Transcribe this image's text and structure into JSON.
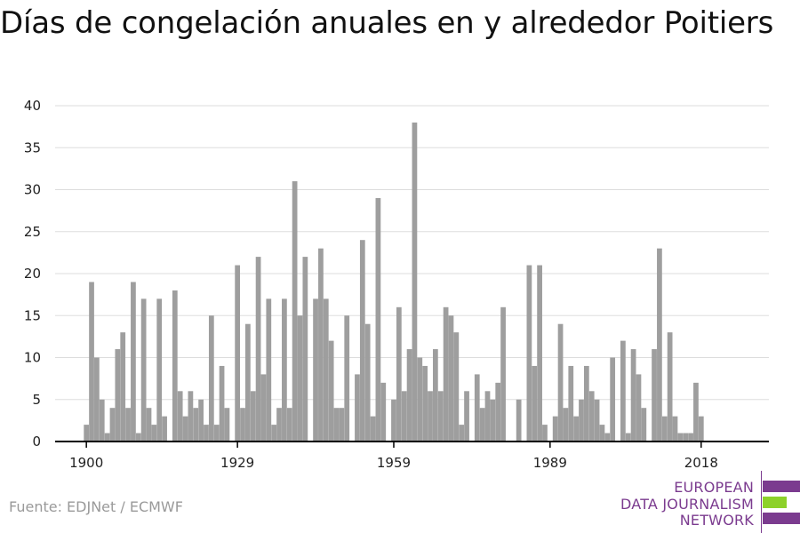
{
  "title": "Días de congelación anuales en y alrededor Poitiers",
  "source": "Fuente: EDJNet / ECMWF",
  "logo": {
    "line1": "EUROPEAN",
    "line2": "DATA JOURNALISM",
    "line3": "NETWORK",
    "colors": {
      "purple": "#7b3b8f",
      "green": "#8dd12a"
    }
  },
  "colors": {
    "bar": "#9e9e9e",
    "grid": "#dddddd",
    "axis": "#000000"
  },
  "chart_data": {
    "type": "bar",
    "title": "Días de congelación anuales en y alrededor Poitiers",
    "xlabel": "",
    "ylabel": "",
    "x_start": 1900,
    "x_ticks": [
      1900,
      1929,
      1959,
      1989,
      2018
    ],
    "x_tick_labels": [
      "1900",
      "1929",
      "1959",
      "1989",
      "2018"
    ],
    "y_ticks": [
      0,
      5,
      10,
      15,
      20,
      25,
      30,
      35,
      40
    ],
    "y_tick_labels": [
      "0",
      "5",
      "10",
      "15",
      "20",
      "25",
      "30",
      "35",
      "40"
    ],
    "ylim": [
      0,
      40
    ],
    "xlim": [
      1894,
      2031
    ],
    "grid": true,
    "legend": "none",
    "categories": [
      1900,
      1901,
      1902,
      1903,
      1904,
      1905,
      1906,
      1907,
      1908,
      1909,
      1910,
      1911,
      1912,
      1913,
      1914,
      1915,
      1916,
      1917,
      1918,
      1919,
      1920,
      1921,
      1922,
      1923,
      1924,
      1925,
      1926,
      1927,
      1928,
      1929,
      1930,
      1931,
      1932,
      1933,
      1934,
      1935,
      1936,
      1937,
      1938,
      1939,
      1940,
      1941,
      1942,
      1943,
      1944,
      1945,
      1946,
      1947,
      1948,
      1949,
      1950,
      1951,
      1952,
      1953,
      1954,
      1955,
      1956,
      1957,
      1958,
      1959,
      1960,
      1961,
      1962,
      1963,
      1964,
      1965,
      1966,
      1967,
      1968,
      1969,
      1970,
      1971,
      1972,
      1973,
      1974,
      1975,
      1976,
      1977,
      1978,
      1979,
      1980,
      1981,
      1982,
      1983,
      1984,
      1985,
      1986,
      1987,
      1988,
      1989,
      1990,
      1991,
      1992,
      1993,
      1994,
      1995,
      1996,
      1997,
      1998,
      1999,
      2000,
      2001,
      2002,
      2003,
      2004,
      2005,
      2006,
      2007,
      2008,
      2009,
      2010,
      2011,
      2012,
      2013,
      2014,
      2015,
      2016,
      2017,
      2018,
      2019,
      2020
    ],
    "values": [
      2,
      19,
      10,
      5,
      1,
      4,
      11,
      13,
      4,
      19,
      1,
      17,
      4,
      2,
      17,
      3,
      0,
      18,
      6,
      3,
      6,
      4,
      5,
      2,
      15,
      2,
      9,
      4,
      0,
      21,
      4,
      14,
      6,
      22,
      8,
      17,
      2,
      4,
      17,
      4,
      31,
      15,
      22,
      0,
      17,
      23,
      17,
      12,
      4,
      4,
      15,
      0,
      8,
      24,
      14,
      3,
      29,
      7,
      0,
      5,
      16,
      6,
      11,
      38,
      10,
      9,
      6,
      11,
      6,
      16,
      15,
      13,
      2,
      6,
      0,
      8,
      4,
      6,
      5,
      7,
      16,
      0,
      0,
      5,
      0,
      21,
      9,
      21,
      2,
      0,
      3,
      14,
      4,
      9,
      3,
      5,
      9,
      6,
      5,
      2,
      1,
      10,
      0,
      12,
      1,
      11,
      8,
      4,
      0,
      11,
      23,
      3,
      13,
      3,
      1,
      1,
      1,
      7,
      3,
      0,
      0
    ]
  }
}
